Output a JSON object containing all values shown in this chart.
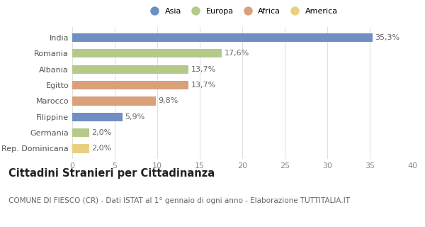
{
  "categories": [
    "India",
    "Romania",
    "Albania",
    "Egitto",
    "Marocco",
    "Filippine",
    "Germania",
    "Rep. Dominicana"
  ],
  "values": [
    35.3,
    17.6,
    13.7,
    13.7,
    9.8,
    5.9,
    2.0,
    2.0
  ],
  "labels": [
    "35,3%",
    "17,6%",
    "13,7%",
    "13,7%",
    "9,8%",
    "5,9%",
    "2,0%",
    "2,0%"
  ],
  "colors": [
    "#6f8fc2",
    "#b5c98a",
    "#b5c98a",
    "#d9a07a",
    "#d9a07a",
    "#6f8fc2",
    "#b5c98a",
    "#e8d080"
  ],
  "legend": [
    {
      "label": "Asia",
      "color": "#6f8fc2"
    },
    {
      "label": "Europa",
      "color": "#b5c98a"
    },
    {
      "label": "Africa",
      "color": "#d9a07a"
    },
    {
      "label": "America",
      "color": "#e8d080"
    }
  ],
  "xlim": [
    0,
    40
  ],
  "xticks": [
    0,
    5,
    10,
    15,
    20,
    25,
    30,
    35,
    40
  ],
  "title": "Cittadini Stranieri per Cittadinanza",
  "subtitle": "COMUNE DI FIESCO (CR) - Dati ISTAT al 1° gennaio di ogni anno - Elaborazione TUTTITALIA.IT",
  "bg_color": "#ffffff",
  "grid_color": "#e0e0e0",
  "bar_height": 0.55,
  "label_fontsize": 8.0,
  "tick_fontsize": 8.0,
  "title_fontsize": 10.5,
  "subtitle_fontsize": 7.5
}
